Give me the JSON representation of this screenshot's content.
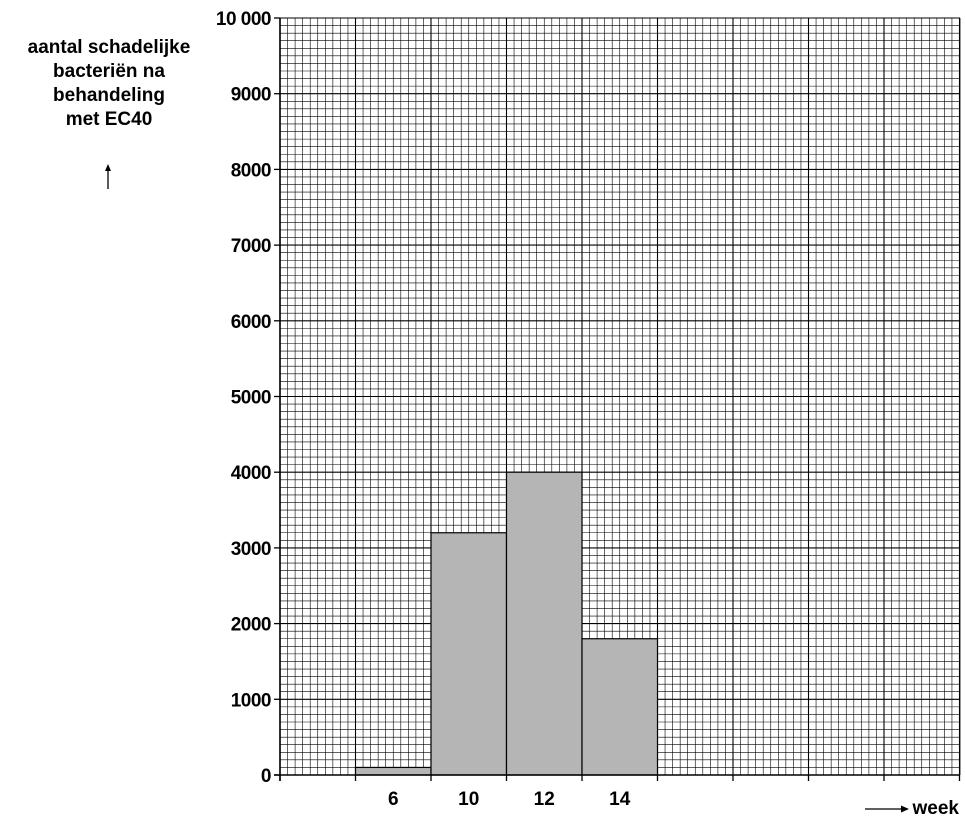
{
  "chart_data": {
    "type": "bar",
    "ylabel_lines": [
      "aantal schadelijke",
      "bacteriën na",
      "behandeling",
      "met EC40"
    ],
    "xlabel": "week",
    "categories": [
      "6",
      "10",
      "12",
      "14"
    ],
    "values": [
      100,
      3200,
      4000,
      1800
    ],
    "ylim": [
      0,
      10000
    ],
    "yticks": [
      "0",
      "1000",
      "2000",
      "3000",
      "4000",
      "5000",
      "6000",
      "7000",
      "8000",
      "9000",
      "10 000"
    ],
    "grid": true,
    "bar_color": "#b5b5b5"
  }
}
